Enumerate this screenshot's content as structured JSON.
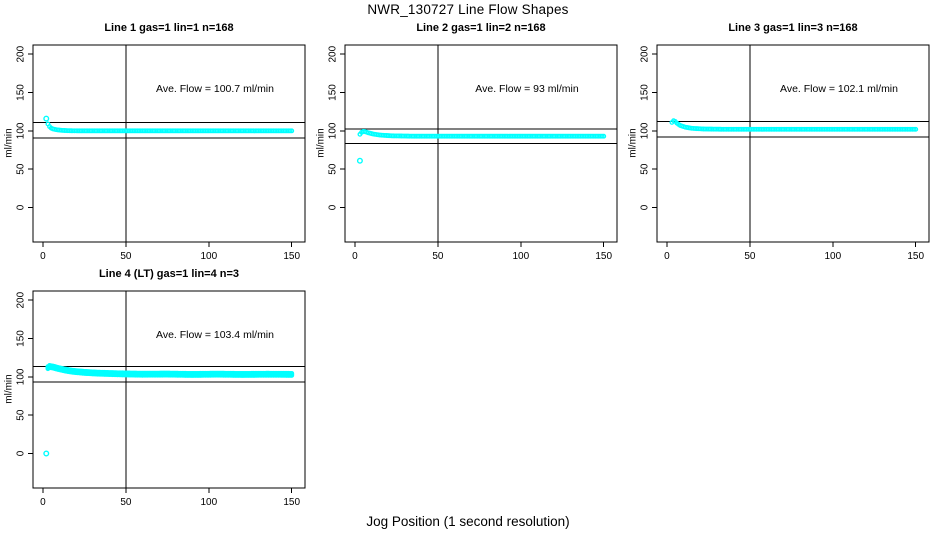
{
  "figure": {
    "title": "NWR_130727  Line Flow Shapes",
    "xlabel": "Jog Position (1 second resolution)",
    "marker_color": "#00ffff",
    "line_color": "#000000"
  },
  "chart_data": [
    {
      "type": "scatter",
      "title": "Line 1 gas=1 lin=1 n=168",
      "annotation": "Ave. Flow =  100.7  ml/min",
      "ave_flow": 100.7,
      "ylabel": "ml/min",
      "x_ticks": [
        0,
        50,
        100,
        150
      ],
      "y_ticks": [
        0,
        50,
        100,
        150,
        200
      ],
      "xlim": [
        -6,
        158
      ],
      "ylim": [
        -45,
        212
      ],
      "vline_x": 50,
      "hlines": [
        110.8,
        90.6
      ],
      "outliers": [
        [
          2,
          116
        ]
      ],
      "band_spread": [
        0
      ],
      "curve_points": [
        [
          3,
          109
        ],
        [
          4,
          105.5
        ],
        [
          5,
          103.5
        ],
        [
          6,
          102.5
        ],
        [
          8,
          101.5
        ],
        [
          11,
          100.7
        ],
        [
          15,
          100.2
        ],
        [
          22,
          100
        ],
        [
          150,
          100
        ]
      ]
    },
    {
      "type": "scatter",
      "title": "Line 2 gas=1 lin=2 n=168",
      "annotation": "Ave. Flow =  93  ml/min",
      "ave_flow": 93,
      "ylabel": "ml/min",
      "x_ticks": [
        0,
        50,
        100,
        150
      ],
      "y_ticks": [
        0,
        50,
        100,
        150,
        200
      ],
      "xlim": [
        -6,
        158
      ],
      "ylim": [
        -45,
        212
      ],
      "vline_x": 50,
      "hlines": [
        102.3,
        83.7
      ],
      "outliers": [
        [
          3,
          61
        ]
      ],
      "band_spread": [
        0
      ],
      "curve_points": [
        [
          3,
          95.5
        ],
        [
          4,
          98
        ],
        [
          5,
          99.2
        ],
        [
          6,
          99
        ],
        [
          8,
          97.5
        ],
        [
          11,
          95.8
        ],
        [
          15,
          94.5
        ],
        [
          22,
          93.5
        ],
        [
          35,
          93
        ],
        [
          150,
          93
        ]
      ]
    },
    {
      "type": "scatter",
      "title": "Line 3 gas=1 lin=3 n=168",
      "annotation": "Ave. Flow =  102.1  ml/min",
      "ave_flow": 102.1,
      "ylabel": "ml/min",
      "x_ticks": [
        0,
        50,
        100,
        150
      ],
      "y_ticks": [
        0,
        50,
        100,
        150,
        200
      ],
      "xlim": [
        -6,
        158
      ],
      "ylim": [
        -45,
        212
      ],
      "vline_x": 50,
      "hlines": [
        112.3,
        91.9
      ],
      "outliers": [],
      "band_spread": [
        0
      ],
      "curve_points": [
        [
          3,
          111
        ],
        [
          4,
          113.2
        ],
        [
          5,
          112.3
        ],
        [
          6,
          110
        ],
        [
          8,
          107
        ],
        [
          11,
          104.8
        ],
        [
          15,
          103.3
        ],
        [
          22,
          102.4
        ],
        [
          35,
          102
        ],
        [
          150,
          102
        ]
      ]
    },
    {
      "type": "scatter",
      "title": "Line 4 (LT) gas=1 lin=4 n=3",
      "annotation": "Ave. Flow =  103.4  ml/min",
      "ave_flow": 103.4,
      "ylabel": "ml/min",
      "x_ticks": [
        0,
        50,
        100,
        150
      ],
      "y_ticks": [
        0,
        50,
        100,
        150,
        200
      ],
      "xlim": [
        -6,
        158
      ],
      "ylim": [
        -45,
        212
      ],
      "vline_x": 50,
      "hlines": [
        113.7,
        93.1
      ],
      "outliers": [
        [
          2,
          0
        ]
      ],
      "band_spread": [
        1.3,
        0,
        -1.3
      ],
      "curve_points": [
        [
          3,
          112
        ],
        [
          4,
          113.5
        ],
        [
          6,
          112.8
        ],
        [
          9,
          111
        ],
        [
          13,
          109
        ],
        [
          18,
          107.2
        ],
        [
          25,
          105.8
        ],
        [
          33,
          104.8
        ],
        [
          45,
          104
        ],
        [
          60,
          103.4
        ],
        [
          75,
          103.6
        ],
        [
          90,
          103.1
        ],
        [
          105,
          103.5
        ],
        [
          120,
          103.1
        ],
        [
          135,
          103.4
        ],
        [
          150,
          103.2
        ]
      ]
    }
  ]
}
